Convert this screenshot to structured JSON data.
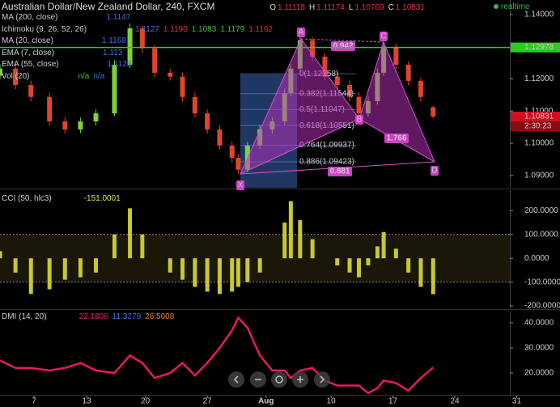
{
  "header": {
    "symbol": "Australian Dollar/New Zealand Dollar, 240, FXCM",
    "ohlc": [
      {
        "key": "O",
        "value": "1.11118"
      },
      {
        "key": "H",
        "value": "1.11174"
      },
      {
        "key": "L",
        "value": "1.10769"
      },
      {
        "key": "C",
        "value": "1.10831"
      }
    ],
    "mode": "realtime"
  },
  "indicators": [
    {
      "name": "MA (200, close)",
      "readouts": [
        {
          "text": "1.1147",
          "color": "#3f6fe0"
        }
      ]
    },
    {
      "name": "Ichimoku (9, 26, 52, 26)",
      "readouts": [
        {
          "text": "1.1127",
          "color": "#3f6fe0"
        },
        {
          "text": "1.1190",
          "color": "#e0304a"
        },
        {
          "text": "1.1083",
          "color": "#36c836"
        },
        {
          "text": "1.1179",
          "color": "#36c836"
        },
        {
          "text": "1.1162",
          "color": "#e0304a"
        }
      ]
    },
    {
      "name": "MA (20, close)",
      "readouts": [
        {
          "text": "1.1168",
          "color": "#3f6fe0"
        }
      ]
    },
    {
      "name": "EMA (7, close)",
      "readouts": [
        {
          "text": "1.113",
          "color": "#3f6fe0"
        }
      ]
    },
    {
      "name": "EMA (55, close)",
      "readouts": [
        {
          "text": "1.1123",
          "color": "#3f6fe0"
        }
      ]
    },
    {
      "name": "Vol (20)",
      "readouts": [
        {
          "text": "n/a",
          "color": "#36c836"
        },
        {
          "text": "n/a",
          "color": "#3f6fe0"
        }
      ]
    }
  ],
  "chart_data": [
    {
      "type": "candlestick",
      "x": [
        0,
        5,
        10,
        16,
        21,
        26,
        31,
        37,
        42,
        46,
        50,
        55,
        59,
        63,
        67,
        71,
        75,
        77,
        80,
        84,
        88,
        92,
        94,
        97,
        101,
        105,
        109,
        113,
        116,
        119,
        122,
        124,
        128,
        132,
        136,
        140
      ],
      "open": [
        1.121,
        1.1232,
        1.1181,
        1.1144,
        1.1068,
        1.1043,
        1.1068,
        1.1093,
        1.1244,
        1.1357,
        1.1295,
        1.1219,
        1.1207,
        1.1144,
        1.1093,
        1.1043,
        1.0993,
        1.0955,
        1.0918,
        1.0993,
        1.1043,
        1.1068,
        1.1156,
        1.1232,
        1.132,
        1.1269,
        1.1207,
        1.1181,
        1.1144,
        1.1093,
        1.1131,
        1.1219,
        1.13,
        1.1244,
        1.1194,
        1.1112
      ],
      "high": [
        1.1245,
        1.1248,
        1.1195,
        1.1158,
        1.1082,
        1.108,
        1.1105,
        1.1258,
        1.1372,
        1.1365,
        1.1305,
        1.1232,
        1.122,
        1.1158,
        1.1105,
        1.1055,
        1.1005,
        1.0968,
        1.1005,
        1.1058,
        1.1082,
        1.117,
        1.1245,
        1.1335,
        1.133,
        1.128,
        1.122,
        1.1195,
        1.1158,
        1.1145,
        1.1232,
        1.1315,
        1.131,
        1.1255,
        1.1205,
        1.1117
      ],
      "low": [
        1.1198,
        1.1168,
        1.113,
        1.1055,
        1.103,
        1.1032,
        1.1055,
        1.1085,
        1.1235,
        1.128,
        1.1205,
        1.1195,
        1.113,
        1.108,
        1.103,
        1.098,
        1.094,
        1.0905,
        1.091,
        1.0982,
        1.103,
        1.1058,
        1.1145,
        1.1222,
        1.1255,
        1.1195,
        1.1168,
        1.113,
        1.108,
        1.1082,
        1.112,
        1.1208,
        1.123,
        1.118,
        1.113,
        1.1077
      ],
      "close": [
        1.1232,
        1.1181,
        1.1144,
        1.1068,
        1.1043,
        1.1068,
        1.1093,
        1.1244,
        1.1357,
        1.1295,
        1.1219,
        1.1207,
        1.1144,
        1.1093,
        1.1043,
        1.0993,
        1.0955,
        1.0918,
        1.0993,
        1.1043,
        1.1068,
        1.1156,
        1.1232,
        1.132,
        1.1269,
        1.1207,
        1.1181,
        1.1144,
        1.1093,
        1.1131,
        1.1219,
        1.13,
        1.1244,
        1.1194,
        1.1144,
        1.1083
      ],
      "up_color": "#7fd13b",
      "down_color": "#e0452b",
      "xlim": [
        0,
        181
      ],
      "ylim": [
        1.0862,
        1.1445
      ],
      "yticks": [
        {
          "value": 1.14,
          "label": "1.14000"
        },
        {
          "value": 1.12,
          "label": "1.12000"
        },
        {
          "value": 1.11,
          "label": "1.11000"
        },
        {
          "value": 1.1,
          "label": "1.10000"
        },
        {
          "value": 1.09,
          "label": "1.09000"
        }
      ],
      "price_lines": [
        {
          "value": 1.12978,
          "label": "1.12978",
          "color": "#22d022",
          "line": true
        },
        {
          "value": 1.10831,
          "label": "1.10831",
          "color": "#d0101e",
          "line": false
        }
      ],
      "countdown": "2:30:23",
      "fib_levels": [
        {
          "value": 1.12158,
          "label": "0(1.12158)"
        },
        {
          "value": 1.11544,
          "label": "0.382(1.11544)"
        },
        {
          "value": 1.11047,
          "label": "0.5(1.11047)"
        },
        {
          "value": 1.10551,
          "label": "0.618(1.10551)"
        },
        {
          "value": 1.09937,
          "label": "0.764(1.09937)"
        },
        {
          "value": 1.09423,
          "label": "0.886(1.09423)"
        }
      ],
      "pattern": {
        "points": [
          "X",
          "A",
          "B",
          "C",
          "D"
        ],
        "ratios": [
          "0.942",
          "1.766",
          "0.881"
        ]
      }
    },
    {
      "type": "histogram",
      "label": "CCI (50, hlc3)",
      "readouts": [
        {
          "text": "-151.0001",
          "color": "#e8e84a"
        }
      ],
      "x": [
        0,
        5,
        10,
        16,
        21,
        26,
        31,
        37,
        42,
        46,
        50,
        55,
        59,
        63,
        67,
        71,
        75,
        77,
        80,
        84,
        88,
        92,
        94,
        97,
        101,
        105,
        109,
        113,
        116,
        119,
        122,
        124,
        128,
        132,
        136,
        140
      ],
      "values": [
        30,
        -60,
        -150,
        -130,
        -90,
        -80,
        -60,
        100,
        210,
        100,
        0,
        -60,
        -90,
        -120,
        -140,
        -150,
        -140,
        -120,
        -100,
        -60,
        0,
        150,
        240,
        160,
        80,
        0,
        -30,
        -60,
        -80,
        -30,
        50,
        110,
        40,
        -60,
        -120,
        -151
      ],
      "color": "#c8c832",
      "xlim": [
        0,
        181
      ],
      "ylim": [
        -210,
        286
      ],
      "levels": [
        100,
        -100
      ],
      "yticks": [
        {
          "value": 200,
          "label": "200.0000"
        },
        {
          "value": 100,
          "label": "100.0000"
        },
        {
          "value": 0,
          "label": "0.0000"
        },
        {
          "value": -100,
          "label": "-100.0000"
        },
        {
          "value": -200,
          "label": "-200.0000"
        }
      ]
    },
    {
      "type": "line",
      "label": "DMI (14, 20)",
      "readouts": [
        {
          "text": "22.1806",
          "color": "#e8195d"
        },
        {
          "text": "11.3279",
          "color": "#3f6fe0"
        },
        {
          "text": "26.5608",
          "color": "#f08030"
        }
      ],
      "x": [
        0,
        5,
        10,
        16,
        21,
        26,
        31,
        37,
        42,
        46,
        50,
        55,
        59,
        63,
        67,
        71,
        75,
        77,
        80,
        84,
        88,
        92,
        94,
        97,
        101,
        105,
        109,
        113,
        116,
        119,
        122,
        124,
        128,
        132,
        136,
        140
      ],
      "series": [
        {
          "color": "#e8195d",
          "values": [
            25,
            22,
            22,
            21,
            22,
            24,
            21,
            20,
            27,
            24,
            18,
            20,
            24,
            19,
            24,
            30,
            37,
            42,
            38,
            27,
            21,
            21,
            18,
            21,
            22,
            17,
            15,
            15,
            15,
            12,
            14,
            17,
            16,
            13,
            18,
            22.1806
          ]
        }
      ],
      "xlim": [
        0,
        181
      ],
      "ylim": [
        11.3,
        44.8
      ],
      "yticks": [
        {
          "value": 40,
          "label": "40.0000"
        },
        {
          "value": 30,
          "label": "30.0000"
        },
        {
          "value": 20,
          "label": "20.0000"
        }
      ],
      "xticks": [
        {
          "value": 11,
          "label": "7"
        },
        {
          "value": 28,
          "label": "13"
        },
        {
          "value": 47,
          "label": "20"
        },
        {
          "value": 67,
          "label": "27"
        },
        {
          "value": 86,
          "label": "Aug"
        },
        {
          "value": 107,
          "label": "10"
        },
        {
          "value": 127,
          "label": "17"
        },
        {
          "value": 147,
          "label": "24"
        },
        {
          "value": 167,
          "label": "31"
        }
      ]
    }
  ]
}
